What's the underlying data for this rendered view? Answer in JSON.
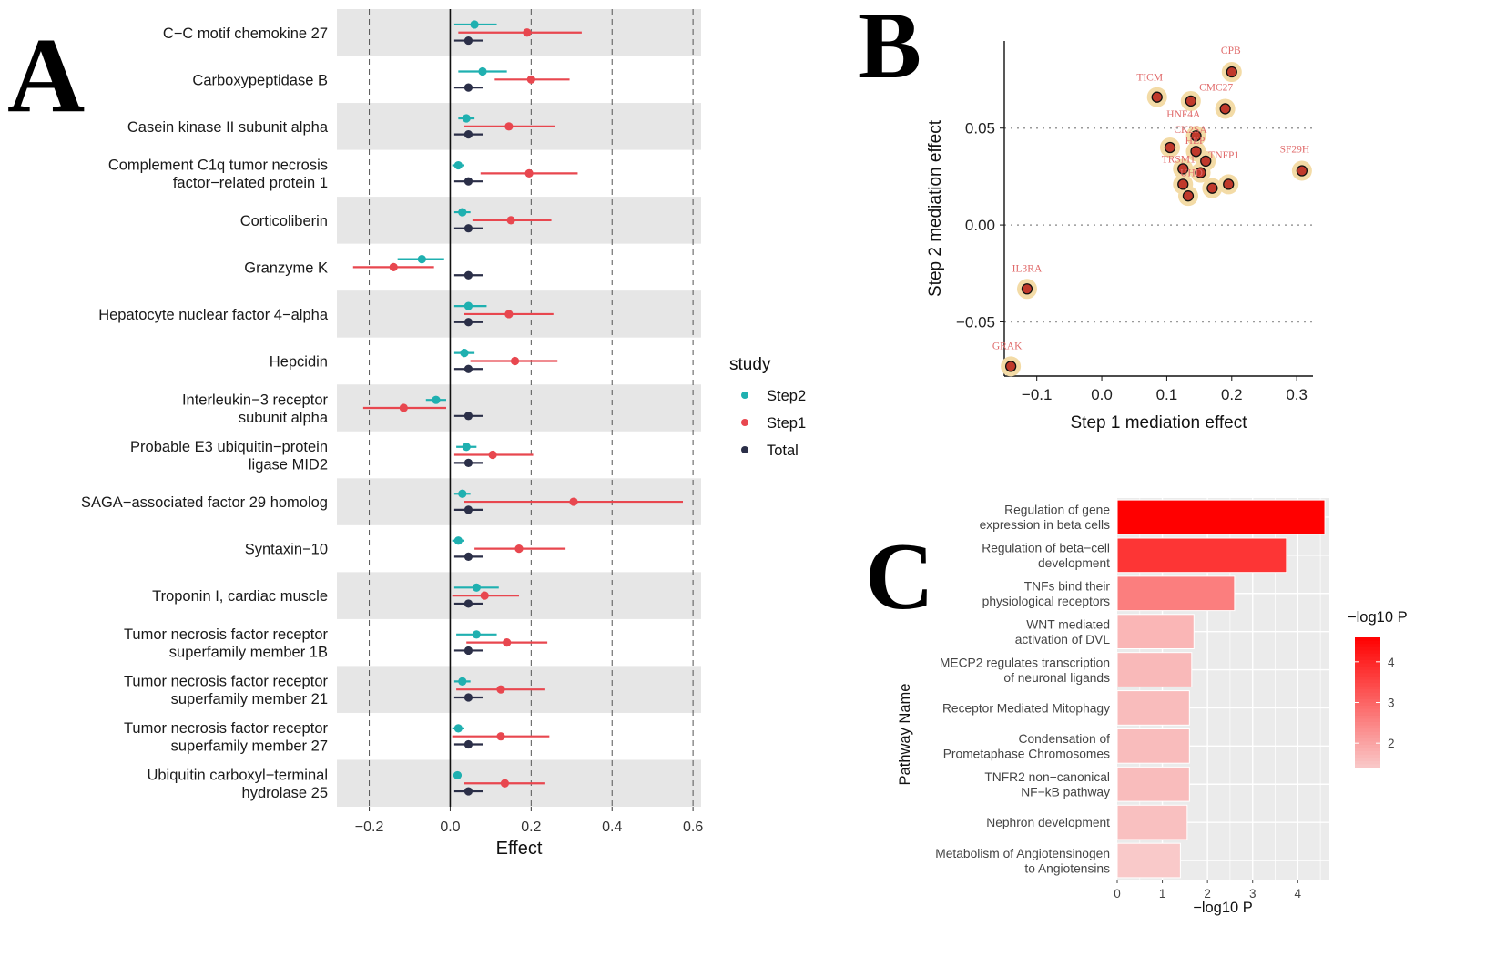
{
  "panel_labels": {
    "a": "A",
    "b": "B",
    "c": "C"
  },
  "colors": {
    "step2": "#1fb0b0",
    "step1": "#e8474f",
    "total": "#2b2f48",
    "band": "#e6e6e6",
    "panel_bg": "#ebebeb",
    "grid": "#ffffff",
    "point_fill": "#c0392b",
    "halo": "#f3dba6",
    "label": "#e06a6a",
    "bar_low": "#f9c9c9",
    "bar_high": "#ff0000"
  },
  "chart_data": [
    {
      "id": "A",
      "type": "forest",
      "xlabel": "Effect",
      "xlim": [
        -0.28,
        0.62
      ],
      "xticks": [
        -0.2,
        0.0,
        0.2,
        0.4,
        0.6
      ],
      "xtick_labels": [
        "−0.2",
        "0.0",
        "0.2",
        "0.4",
        "0.6"
      ],
      "legend": {
        "title": "study",
        "position": "right",
        "entries": [
          {
            "name": "Step2",
            "color_key": "step2"
          },
          {
            "name": "Step1",
            "color_key": "step1"
          },
          {
            "name": "Total",
            "color_key": "total"
          }
        ]
      },
      "rows": [
        {
          "label": [
            "C−C motif chemokine 27"
          ],
          "step2": {
            "est": 0.06,
            "lo": 0.01,
            "hi": 0.115
          },
          "step1": {
            "est": 0.19,
            "lo": 0.02,
            "hi": 0.325
          },
          "total": {
            "est": 0.045,
            "lo": 0.01,
            "hi": 0.08
          }
        },
        {
          "label": [
            "Carboxypeptidase B"
          ],
          "step2": {
            "est": 0.08,
            "lo": 0.02,
            "hi": 0.14
          },
          "step1": {
            "est": 0.2,
            "lo": 0.11,
            "hi": 0.295
          },
          "total": {
            "est": 0.045,
            "lo": 0.01,
            "hi": 0.08
          }
        },
        {
          "label": [
            "Casein kinase II subunit alpha"
          ],
          "step2": {
            "est": 0.04,
            "lo": 0.02,
            "hi": 0.06
          },
          "step1": {
            "est": 0.145,
            "lo": 0.035,
            "hi": 0.26
          },
          "total": {
            "est": 0.045,
            "lo": 0.01,
            "hi": 0.08
          }
        },
        {
          "label": [
            "Complement C1q tumor necrosis",
            "factor−related protein 1"
          ],
          "step2": {
            "est": 0.02,
            "lo": 0.005,
            "hi": 0.035
          },
          "step1": {
            "est": 0.195,
            "lo": 0.075,
            "hi": 0.315
          },
          "total": {
            "est": 0.045,
            "lo": 0.01,
            "hi": 0.08
          }
        },
        {
          "label": [
            "Corticoliberin"
          ],
          "step2": {
            "est": 0.03,
            "lo": 0.01,
            "hi": 0.05
          },
          "step1": {
            "est": 0.15,
            "lo": 0.055,
            "hi": 0.25
          },
          "total": {
            "est": 0.045,
            "lo": 0.01,
            "hi": 0.08
          }
        },
        {
          "label": [
            "Granzyme K"
          ],
          "step2": {
            "est": -0.07,
            "lo": -0.13,
            "hi": -0.015
          },
          "step1": {
            "est": -0.14,
            "lo": -0.24,
            "hi": -0.04
          },
          "total": {
            "est": 0.045,
            "lo": 0.01,
            "hi": 0.08
          }
        },
        {
          "label": [
            "Hepatocyte nuclear factor 4−alpha"
          ],
          "step2": {
            "est": 0.045,
            "lo": 0.01,
            "hi": 0.09
          },
          "step1": {
            "est": 0.145,
            "lo": 0.035,
            "hi": 0.255
          },
          "total": {
            "est": 0.045,
            "lo": 0.01,
            "hi": 0.08
          }
        },
        {
          "label": [
            "Hepcidin"
          ],
          "step2": {
            "est": 0.035,
            "lo": 0.01,
            "hi": 0.06
          },
          "step1": {
            "est": 0.16,
            "lo": 0.05,
            "hi": 0.265
          },
          "total": {
            "est": 0.045,
            "lo": 0.01,
            "hi": 0.08
          }
        },
        {
          "label": [
            "Interleukin−3 receptor",
            "subunit alpha"
          ],
          "step2": {
            "est": -0.035,
            "lo": -0.06,
            "hi": -0.01
          },
          "step1": {
            "est": -0.115,
            "lo": -0.215,
            "hi": -0.01
          },
          "total": {
            "est": 0.045,
            "lo": 0.01,
            "hi": 0.08
          }
        },
        {
          "label": [
            "Probable E3 ubiquitin−protein",
            "ligase MID2"
          ],
          "step2": {
            "est": 0.04,
            "lo": 0.015,
            "hi": 0.065
          },
          "step1": {
            "est": 0.105,
            "lo": 0.01,
            "hi": 0.205
          },
          "total": {
            "est": 0.045,
            "lo": 0.01,
            "hi": 0.08
          }
        },
        {
          "label": [
            "SAGA−associated factor 29 homolog"
          ],
          "step2": {
            "est": 0.03,
            "lo": 0.01,
            "hi": 0.05
          },
          "step1": {
            "est": 0.305,
            "lo": 0.035,
            "hi": 0.575
          },
          "total": {
            "est": 0.045,
            "lo": 0.01,
            "hi": 0.08
          }
        },
        {
          "label": [
            "Syntaxin−10"
          ],
          "step2": {
            "est": 0.02,
            "lo": 0.005,
            "hi": 0.035
          },
          "step1": {
            "est": 0.17,
            "lo": 0.06,
            "hi": 0.285
          },
          "total": {
            "est": 0.045,
            "lo": 0.01,
            "hi": 0.08
          }
        },
        {
          "label": [
            "Troponin I, cardiac muscle"
          ],
          "step2": {
            "est": 0.065,
            "lo": 0.01,
            "hi": 0.12
          },
          "step1": {
            "est": 0.085,
            "lo": 0.005,
            "hi": 0.17
          },
          "total": {
            "est": 0.045,
            "lo": 0.01,
            "hi": 0.08
          }
        },
        {
          "label": [
            "Tumor necrosis factor receptor",
            "superfamily member 1B"
          ],
          "step2": {
            "est": 0.065,
            "lo": 0.015,
            "hi": 0.115
          },
          "step1": {
            "est": 0.14,
            "lo": 0.04,
            "hi": 0.24
          },
          "total": {
            "est": 0.045,
            "lo": 0.01,
            "hi": 0.08
          }
        },
        {
          "label": [
            "Tumor necrosis factor receptor",
            "superfamily member 21"
          ],
          "step2": {
            "est": 0.03,
            "lo": 0.01,
            "hi": 0.05
          },
          "step1": {
            "est": 0.125,
            "lo": 0.015,
            "hi": 0.235
          },
          "total": {
            "est": 0.045,
            "lo": 0.01,
            "hi": 0.08
          }
        },
        {
          "label": [
            "Tumor necrosis factor receptor",
            "superfamily member 27"
          ],
          "step2": {
            "est": 0.02,
            "lo": 0.005,
            "hi": 0.035
          },
          "step1": {
            "est": 0.125,
            "lo": 0.005,
            "hi": 0.245
          },
          "total": {
            "est": 0.045,
            "lo": 0.01,
            "hi": 0.08
          }
        },
        {
          "label": [
            "Ubiquitin carboxyl−terminal",
            "hydrolase 25"
          ],
          "step2": {
            "est": 0.018,
            "lo": 0.008,
            "hi": 0.028
          },
          "step1": {
            "est": 0.135,
            "lo": 0.035,
            "hi": 0.235
          },
          "total": {
            "est": 0.045,
            "lo": 0.01,
            "hi": 0.08
          }
        }
      ]
    },
    {
      "id": "B",
      "type": "scatter",
      "xlabel": "Step 1 mediation effect",
      "ylabel": "Step 2 mediation effect",
      "xlim": [
        -0.15,
        0.325
      ],
      "ylim": [
        -0.078,
        0.095
      ],
      "xticks": [
        -0.1,
        0.0,
        0.1,
        0.2,
        0.3
      ],
      "xtick_labels": [
        "−0.1",
        "0.0",
        "0.1",
        "0.2",
        "0.3"
      ],
      "yticks": [
        -0.05,
        0.0,
        0.05
      ],
      "ytick_labels": [
        "−0.05",
        "0.00",
        "0.05"
      ],
      "hlines": [
        -0.05,
        0.0,
        0.05
      ],
      "points": [
        {
          "x": 0.2,
          "y": 0.079,
          "label": "CPB"
        },
        {
          "x": 0.085,
          "y": 0.066,
          "label": "TICM"
        },
        {
          "x": 0.19,
          "y": 0.06,
          "label": "CMC27"
        },
        {
          "x": 0.137,
          "y": 0.064,
          "label": "HNF4A"
        },
        {
          "x": 0.145,
          "y": 0.046,
          "label": "CK2SA"
        },
        {
          "x": 0.145,
          "y": 0.038,
          "label": "HEP"
        },
        {
          "x": 0.105,
          "y": 0.04,
          "label": ""
        },
        {
          "x": 0.308,
          "y": 0.028,
          "label": "SF29H"
        },
        {
          "x": 0.16,
          "y": 0.033,
          "label": "TNFP1"
        },
        {
          "x": 0.125,
          "y": 0.029,
          "label": "TRSM1"
        },
        {
          "x": 0.152,
          "y": 0.027,
          "label": "UHD"
        },
        {
          "x": 0.195,
          "y": 0.021,
          "label": ""
        },
        {
          "x": 0.17,
          "y": 0.019,
          "label": ""
        },
        {
          "x": 0.125,
          "y": 0.021,
          "label": ""
        },
        {
          "x": 0.133,
          "y": 0.015,
          "label": ""
        },
        {
          "x": -0.115,
          "y": -0.033,
          "label": "IL3RA"
        },
        {
          "x": -0.14,
          "y": -0.073,
          "label": "GRAK"
        }
      ]
    },
    {
      "id": "C",
      "type": "bar",
      "orientation": "horizontal",
      "xlabel": "−log10 P",
      "ylabel": "Pathway Name",
      "xlim": [
        0,
        4.7
      ],
      "xticks": [
        0,
        1,
        2,
        3,
        4
      ],
      "xtick_labels": [
        "0",
        "1",
        "2",
        "3",
        "4"
      ],
      "colorbar": {
        "title": "−log10 P",
        "ticks": [
          2,
          3,
          4
        ],
        "tick_labels": [
          "2",
          "3",
          "4"
        ],
        "range": [
          1.4,
          4.6
        ]
      },
      "categories": [
        [
          "Regulation of gene",
          "expression in beta cells"
        ],
        [
          "Regulation of beta−cell",
          "development"
        ],
        [
          "TNFs bind their",
          "physiological receptors"
        ],
        [
          "WNT mediated",
          "activation of DVL"
        ],
        [
          "MECP2 regulates transcription",
          "of neuronal ligands"
        ],
        [
          "Receptor Mediated Mitophagy"
        ],
        [
          "Condensation of",
          "Prometaphase Chromosomes"
        ],
        [
          "TNFR2 non−canonical",
          "NF−kB pathway"
        ],
        [
          "Nephron development"
        ],
        [
          "Metabolism of Angiotensinogen",
          "to Angiotensins"
        ]
      ],
      "values": [
        4.6,
        3.75,
        2.6,
        1.7,
        1.65,
        1.6,
        1.6,
        1.6,
        1.55,
        1.4
      ]
    }
  ]
}
